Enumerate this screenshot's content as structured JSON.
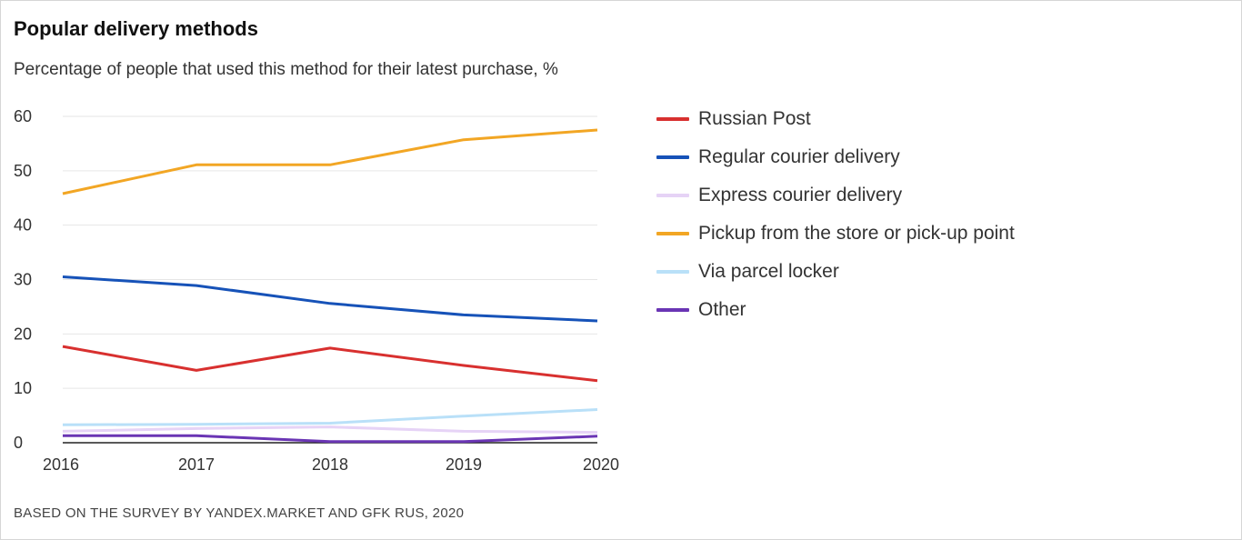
{
  "chart_data": {
    "type": "line",
    "title": "Popular delivery methods",
    "subtitle": "Percentage of people that used this method for their latest purchase, %",
    "source": "BASED ON THE SURVEY BY YANDEX.MARKET AND GFK RUS, 2020",
    "x": [
      "2016",
      "2017",
      "2018",
      "2019",
      "2020"
    ],
    "yticks": [
      "0",
      "10",
      "20",
      "30",
      "40",
      "50",
      "60"
    ],
    "ylim": [
      0,
      60
    ],
    "grid": true,
    "legend_position": "right",
    "xlabel": "",
    "ylabel": "",
    "series": [
      {
        "key": "russian-post",
        "name": "Russian Post",
        "color": "#d8302f",
        "values": [
          17.7,
          13.3,
          17.4,
          14.2,
          11.4
        ]
      },
      {
        "key": "regular-courier",
        "name": "Regular courier delivery",
        "color": "#1652b8",
        "values": [
          30.5,
          28.9,
          25.6,
          23.5,
          22.4
        ]
      },
      {
        "key": "express-courier",
        "name": "Express courier delivery",
        "color": "#e6d3f6",
        "values": [
          2.1,
          2.6,
          2.9,
          2.1,
          1.9
        ]
      },
      {
        "key": "pickup",
        "name": "Pickup from the store or pick-up point",
        "color": "#f2a624",
        "values": [
          45.8,
          51.1,
          51.1,
          55.7,
          57.5
        ]
      },
      {
        "key": "parcel-locker",
        "name": "Via parcel locker",
        "color": "#b9e0f8",
        "values": [
          3.3,
          3.4,
          3.6,
          4.9,
          6.1
        ]
      },
      {
        "key": "other",
        "name": "Other",
        "color": "#6a35b4",
        "values": [
          1.3,
          1.3,
          0.2,
          0.2,
          1.2
        ]
      }
    ]
  }
}
